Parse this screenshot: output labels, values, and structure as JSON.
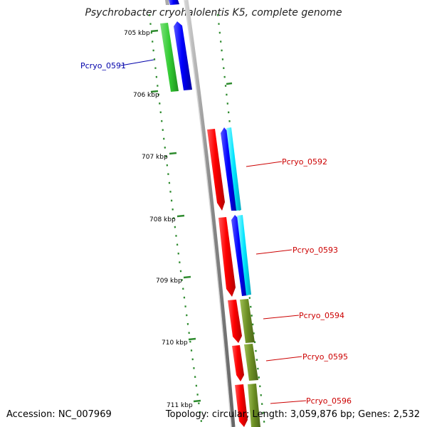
{
  "title": "Psychrobacter cryohalolentis K5, complete genome",
  "footer": {
    "accession": "Accession: NC_007969",
    "summary": "Topology: circular; Length: 3,059,876 bp; Genes: 2,532"
  },
  "ticks": [
    {
      "label": "705 kbp"
    },
    {
      "label": "706 kbp"
    },
    {
      "label": "707 kbp"
    },
    {
      "label": "708 kbp"
    },
    {
      "label": "709 kbp"
    },
    {
      "label": "710 kbp"
    },
    {
      "label": "711 kbp"
    }
  ],
  "gene_labels": [
    {
      "label": "Pcryo_0591",
      "color": "#0000aa"
    },
    {
      "label": "Pcryo_0592",
      "color": "#cc0000"
    },
    {
      "label": "Pcryo_0593",
      "color": "#cc0000"
    },
    {
      "label": "Pcryo_0594",
      "color": "#cc0000"
    },
    {
      "label": "Pcryo_0595",
      "color": "#cc0000"
    },
    {
      "label": "Pcryo_0596",
      "color": "#cc0000"
    }
  ],
  "colors": {
    "backbone": "#8c8c8c",
    "gene_forward": "#ff0000",
    "gene_reverse": "#0000ff",
    "feature_green": "#33cc33",
    "feature_cyan": "#00e5ff",
    "feature_olive": "#6b8e23",
    "gc_dots": "#2e8b2e"
  }
}
